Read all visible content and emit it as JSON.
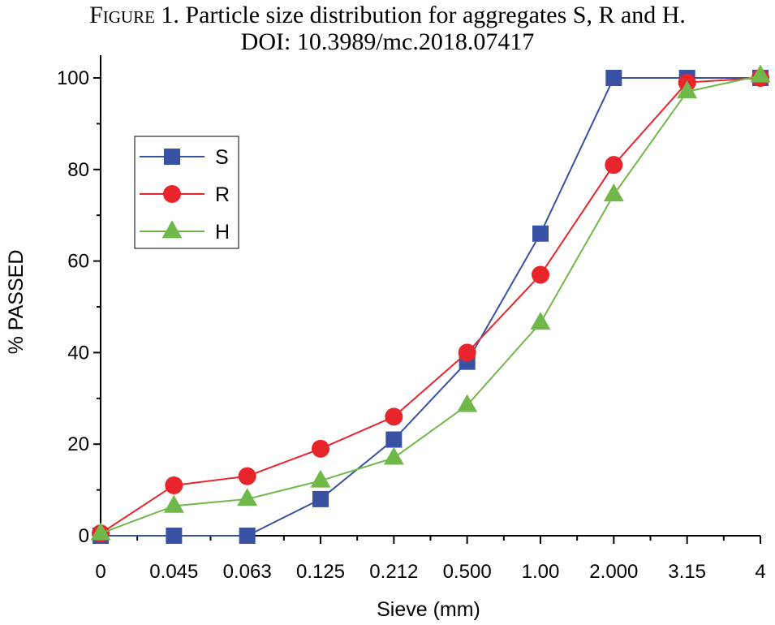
{
  "title": {
    "prefix": "Figure 1.",
    "text": "Particle size distribution for aggregates S, R and H.",
    "doi": "DOI: 10.3989/mc.2018.07417"
  },
  "chart_data": {
    "type": "line",
    "categories": [
      "0",
      "0.045",
      "0.063",
      "0.125",
      "0.212",
      "0.500",
      "1.00",
      "2.000",
      "3.15",
      "4"
    ],
    "xlabel": "Sieve (mm)",
    "ylabel": "% PASSED",
    "ylim": [
      0,
      100
    ],
    "yticks": [
      0,
      20,
      40,
      60,
      80,
      100
    ],
    "grid": false,
    "legend_position": "top-left",
    "series": [
      {
        "name": "S",
        "color": "#3951a3",
        "marker": "square",
        "values": [
          0,
          0,
          0,
          8,
          21,
          38,
          66,
          100,
          100,
          100
        ]
      },
      {
        "name": "R",
        "color": "#e8252b",
        "marker": "circle",
        "values": [
          0.5,
          11,
          13,
          19,
          26,
          40,
          57,
          81,
          99,
          100
        ]
      },
      {
        "name": "H",
        "color": "#71b84a",
        "marker": "triangle",
        "values": [
          0.5,
          6.5,
          8,
          12,
          17,
          28.5,
          46.5,
          74.5,
          97,
          100.5
        ]
      }
    ]
  }
}
